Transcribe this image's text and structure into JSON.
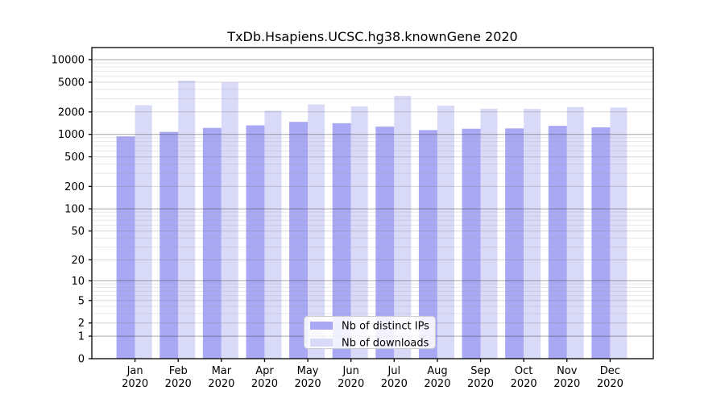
{
  "chart_data": {
    "type": "bar",
    "title": "TxDb.Hsapiens.UCSC.hg38.knownGene 2020",
    "categories": [
      "Jan",
      "Feb",
      "Mar",
      "Apr",
      "May",
      "Jun",
      "Jul",
      "Aug",
      "Sep",
      "Oct",
      "Nov",
      "Dec"
    ],
    "xtick_year_line": "2020",
    "series": [
      {
        "name": "Nb of distinct IPs",
        "color": "#a8a8f5",
        "values": [
          940,
          1080,
          1220,
          1320,
          1470,
          1410,
          1270,
          1140,
          1190,
          1200,
          1300,
          1240
        ]
      },
      {
        "name": "Nb of downloads",
        "color": "#d9d9f8",
        "values": [
          2460,
          5230,
          4950,
          2070,
          2520,
          2360,
          3270,
          2420,
          2200,
          2190,
          2320,
          2290
        ]
      }
    ],
    "yscale": "log1p",
    "yticks": [
      0,
      1,
      2,
      5,
      10,
      20,
      50,
      100,
      200,
      500,
      1000,
      2000,
      5000,
      10000
    ],
    "ylim": [
      0,
      14500
    ],
    "grid": true,
    "legend_position": "lower center",
    "axis_color": "#000000",
    "grid_major_color": "#a7a7a7",
    "grid_minor_color": "#e7e7e7"
  }
}
